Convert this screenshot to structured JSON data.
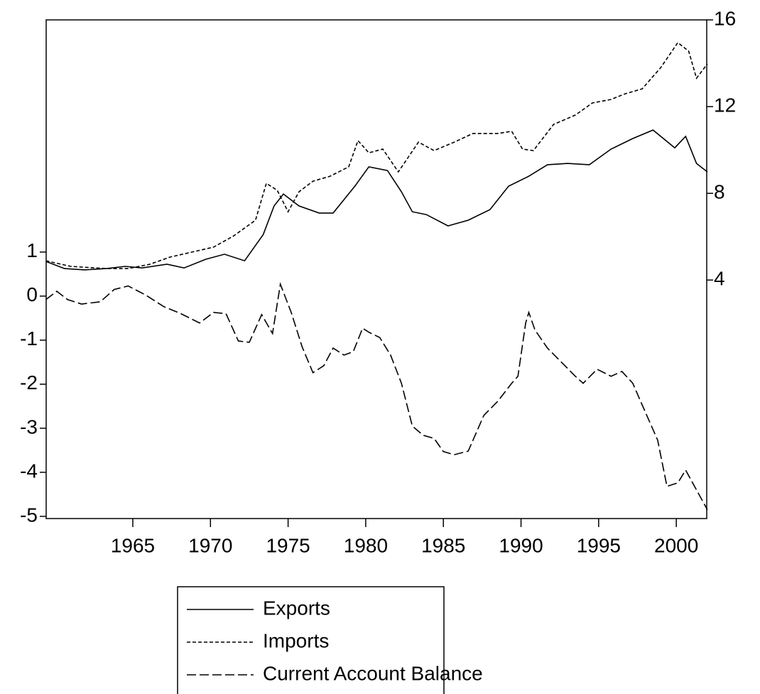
{
  "chart_data": {
    "type": "line",
    "xlim": [
      1959.42,
      2001.96
    ],
    "xticks": [
      1965,
      1970,
      1975,
      1980,
      1985,
      1990,
      1995,
      2000
    ],
    "ylim": [
      -5.05,
      6.27
    ],
    "yticks": [
      -5,
      -4,
      -3,
      -2,
      -1,
      0,
      1
    ],
    "y2lim": [
      -7,
      16
    ],
    "y2ticks": [
      4,
      8,
      12,
      16
    ],
    "legend": "bottom",
    "series": [
      {
        "name": "Exports",
        "color": "#000000",
        "style": "solid",
        "axis": "y2",
        "x": [
          1959.4,
          1960.6,
          1961.9,
          1963.3,
          1964.5,
          1965.6,
          1967.2,
          1968.3,
          1969.7,
          1970.9,
          1972.2,
          1973.4,
          1974.1,
          1974.7,
          1975.7,
          1977.0,
          1977.9,
          1979.3,
          1980.2,
          1981.4,
          1982.3,
          1983.0,
          1983.9,
          1985.3,
          1986.6,
          1988.0,
          1989.2,
          1990.5,
          1991.7,
          1993.0,
          1994.4,
          1995.8,
          1997.2,
          1998.5,
          1999.9,
          2000.6,
          2001.3,
          2002.0
        ],
        "values": [
          4.86,
          4.53,
          4.47,
          4.53,
          4.63,
          4.56,
          4.73,
          4.56,
          4.96,
          5.19,
          4.89,
          6.1,
          7.42,
          7.97,
          7.42,
          7.09,
          7.09,
          8.33,
          9.22,
          9.05,
          8.07,
          7.15,
          7.02,
          6.5,
          6.76,
          7.25,
          8.33,
          8.79,
          9.32,
          9.38,
          9.32,
          10.04,
          10.53,
          10.92,
          10.1,
          10.63,
          9.38,
          8.99
        ]
      },
      {
        "name": "Imports",
        "color": "#000000",
        "style": "dashed",
        "axis": "y2",
        "x": [
          1959.4,
          1961.0,
          1963.3,
          1964.7,
          1966.1,
          1967.4,
          1968.8,
          1970.2,
          1971.5,
          1972.9,
          1973.6,
          1974.3,
          1975.0,
          1975.7,
          1976.6,
          1977.7,
          1978.9,
          1979.5,
          1980.2,
          1981.1,
          1982.1,
          1983.4,
          1984.4,
          1985.7,
          1986.9,
          1988.5,
          1989.4,
          1990.1,
          1990.8,
          1992.1,
          1993.5,
          1994.6,
          1995.8,
          1996.7,
          1997.8,
          1999.0,
          2000.1,
          2000.8,
          2001.3,
          2002.0
        ],
        "values": [
          4.89,
          4.63,
          4.53,
          4.53,
          4.73,
          5.06,
          5.29,
          5.52,
          6.04,
          6.76,
          8.46,
          8.14,
          7.15,
          8.07,
          8.56,
          8.79,
          9.22,
          10.43,
          9.87,
          10.04,
          8.99,
          10.36,
          9.97,
          10.36,
          10.76,
          10.76,
          10.86,
          10.04,
          9.97,
          11.18,
          11.61,
          12.17,
          12.33,
          12.59,
          12.82,
          13.8,
          14.95,
          14.56,
          13.31,
          13.97
        ]
      },
      {
        "name": "Current Account Balance",
        "color": "#000000",
        "style": "long-dashed",
        "x": [
          1959.4,
          1960.1,
          1960.8,
          1961.7,
          1962.9,
          1963.8,
          1964.7,
          1965.8,
          1967.0,
          1968.1,
          1969.3,
          1970.2,
          1971.0,
          1971.8,
          1972.5,
          1973.3,
          1974.0,
          1974.5,
          1975.2,
          1975.9,
          1976.6,
          1977.3,
          1977.9,
          1978.6,
          1979.2,
          1979.8,
          1980.2,
          1980.9,
          1981.6,
          1982.3,
          1983.0,
          1983.7,
          1984.4,
          1985.0,
          1985.7,
          1986.6,
          1987.6,
          1988.5,
          1989.4,
          1989.8,
          1990.3,
          1990.5,
          1990.9,
          1991.7,
          1992.6,
          1993.5,
          1994.0,
          1994.9,
          1995.8,
          1996.5,
          1997.2,
          1997.8,
          1998.8,
          1999.4,
          2000.1,
          2000.6,
          2001.3,
          2002.0
        ],
        "values": [
          -0.08,
          0.11,
          -0.08,
          -0.18,
          -0.13,
          0.15,
          0.23,
          0.03,
          -0.24,
          -0.4,
          -0.61,
          -0.37,
          -0.4,
          -1.02,
          -1.05,
          -0.42,
          -0.85,
          0.27,
          -0.37,
          -1.15,
          -1.74,
          -1.58,
          -1.18,
          -1.34,
          -1.26,
          -0.73,
          -0.82,
          -0.94,
          -1.34,
          -1.98,
          -2.95,
          -3.16,
          -3.23,
          -3.53,
          -3.6,
          -3.52,
          -2.71,
          -2.39,
          -1.98,
          -1.82,
          -0.61,
          -0.37,
          -0.77,
          -1.18,
          -1.5,
          -1.82,
          -1.98,
          -1.66,
          -1.82,
          -1.71,
          -1.98,
          -2.47,
          -3.27,
          -4.32,
          -4.24,
          -3.95,
          -4.4,
          -4.85
        ]
      }
    ]
  }
}
